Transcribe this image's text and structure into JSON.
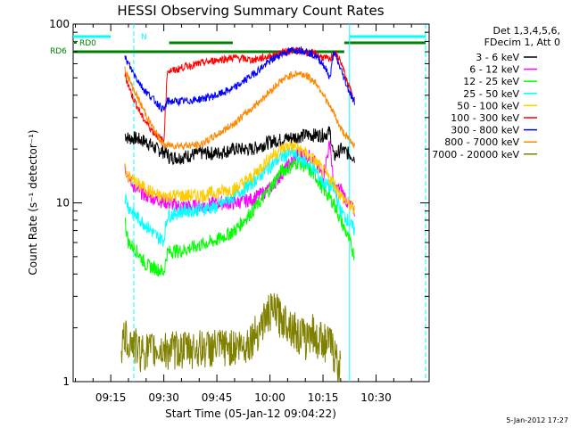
{
  "chart_data": {
    "type": "line",
    "title": "HESSI Observing Summary Count Rates",
    "xlabel": "Start Time (05-Jan-12 09:04:22)",
    "ylabel": "Count Rate (s⁻¹ detector⁻¹)",
    "yscale": "log",
    "ylim": [
      1,
      100
    ],
    "y_ticks": [
      {
        "value": 1,
        "label": "1"
      },
      {
        "value": 10,
        "label": "10"
      },
      {
        "value": 100,
        "label": "100"
      }
    ],
    "x_ticks": [
      "09:15",
      "09:30",
      "09:45",
      "10:00",
      "10:15",
      "10:30"
    ],
    "x_tick_minutes": [
      15,
      30,
      45,
      60,
      75,
      90
    ],
    "xlim_minutes": [
      4.37,
      105.0
    ],
    "grid": false,
    "legend_header": [
      "Det 1,3,4,5,6,",
      "FDecim 1, Att 0"
    ],
    "legend_position": "right",
    "series": [
      {
        "name": "3 - 6 keV",
        "color": "#000000",
        "t": [
          19,
          20,
          22,
          25,
          28,
          31,
          31.5,
          35,
          40,
          45,
          50,
          55,
          60,
          65,
          70,
          75,
          77,
          78,
          80,
          82,
          84
        ],
        "values": [
          24,
          23,
          23,
          22,
          20,
          19,
          18,
          18,
          19,
          19,
          20,
          20,
          22,
          23,
          24,
          24,
          25,
          18,
          20,
          19,
          18
        ]
      },
      {
        "name": "6 - 12 keV",
        "color": "#ff00ff",
        "t": [
          19,
          20,
          22,
          25,
          28,
          31,
          35,
          40,
          45,
          50,
          55,
          60,
          65,
          68,
          72,
          75,
          77,
          78,
          80,
          82,
          84
        ],
        "values": [
          16,
          14,
          12,
          11,
          10.5,
          10,
          9.6,
          9.6,
          10,
          10,
          10.5,
          12,
          16,
          19,
          18,
          14,
          22,
          12,
          12,
          10,
          9
        ]
      },
      {
        "name": "12 - 25 keV",
        "color": "#00ff00",
        "t": [
          19,
          20,
          22,
          25,
          28,
          30,
          31,
          33,
          35,
          40,
          45,
          50,
          55,
          60,
          63,
          66,
          68,
          70,
          73,
          75,
          78,
          80,
          82,
          84
        ],
        "values": [
          8,
          6,
          5.5,
          4.5,
          4.3,
          4.1,
          5.3,
          5.4,
          5.4,
          5.8,
          6.2,
          7,
          9,
          12,
          15,
          16,
          17,
          16,
          14,
          12,
          10,
          8,
          6.5,
          5
        ]
      },
      {
        "name": "25 - 50 keV",
        "color": "#00ffff",
        "t": [
          19,
          20,
          22,
          25,
          28,
          30,
          31,
          33,
          35,
          40,
          45,
          50,
          55,
          60,
          63,
          66,
          68,
          70,
          73,
          75,
          78,
          80,
          82,
          84
        ],
        "values": [
          11,
          9.5,
          8.5,
          7.5,
          6.5,
          6.2,
          8.5,
          8.7,
          9,
          9.2,
          9.5,
          11,
          13,
          16,
          18,
          19,
          18,
          17,
          15,
          13,
          12,
          9,
          8,
          7
        ]
      },
      {
        "name": "50 - 100 keV",
        "color": "#ffcc00",
        "t": [
          19,
          20,
          22,
          25,
          28,
          30,
          31,
          33,
          35,
          40,
          45,
          50,
          55,
          60,
          63,
          66,
          68,
          70,
          73,
          75,
          78,
          80,
          82,
          84
        ],
        "values": [
          16,
          14,
          13,
          12,
          11,
          10.8,
          11,
          11,
          11,
          11,
          11.5,
          12,
          14,
          18,
          20,
          21,
          20,
          19,
          17,
          15,
          13,
          11,
          10,
          9
        ]
      },
      {
        "name": "100 - 300 keV",
        "color": "#ff0000",
        "t": [
          19,
          21,
          24,
          27,
          30,
          31,
          33,
          36,
          40,
          45,
          50,
          55,
          60,
          63,
          66,
          68,
          70,
          73,
          75,
          77,
          78,
          80,
          82,
          84
        ],
        "values": [
          52,
          40,
          30,
          25,
          22,
          55,
          55,
          58,
          60,
          63,
          65,
          63,
          66,
          69,
          71,
          71,
          70,
          68,
          65,
          63,
          70,
          62,
          46,
          38
        ]
      },
      {
        "name": "300 - 800 keV",
        "color": "#0000ff",
        "t": [
          19,
          21,
          24,
          27,
          30,
          31,
          33,
          36,
          40,
          45,
          50,
          55,
          60,
          63,
          66,
          68,
          70,
          73,
          75,
          77,
          78,
          80,
          82,
          84
        ],
        "values": [
          65,
          55,
          44,
          38,
          33,
          37,
          37,
          37,
          38,
          40,
          44,
          52,
          62,
          68,
          71,
          72,
          71,
          66,
          60,
          50,
          70,
          56,
          44,
          36
        ]
      },
      {
        "name": "800 - 7000 keV",
        "color": "#ff8800",
        "t": [
          19,
          21,
          24,
          27,
          30,
          31,
          33,
          36,
          40,
          45,
          50,
          55,
          60,
          63,
          66,
          68,
          70,
          73,
          75,
          77,
          78,
          80,
          82,
          84
        ],
        "values": [
          56,
          45,
          34,
          26,
          21,
          21,
          21,
          21,
          21,
          24,
          28,
          34,
          42,
          48,
          52,
          53,
          52,
          47,
          41,
          34,
          32,
          26,
          23,
          21
        ]
      },
      {
        "name": "7000 - 20000 keV",
        "color": "#808000",
        "t": [
          18,
          19,
          20,
          21,
          22,
          23,
          53,
          55,
          57,
          58,
          60,
          62,
          63,
          65,
          67,
          68,
          69,
          70,
          71,
          72,
          73,
          75,
          76,
          77,
          78,
          79,
          80
        ],
        "values": [
          1.6,
          1.8,
          1.7,
          1.7,
          1.6,
          1.5,
          1.6,
          1.8,
          2.0,
          2.2,
          2.5,
          2.5,
          2.3,
          2.2,
          2.0,
          1.8,
          1.9,
          1.7,
          1.9,
          2.0,
          1.7,
          1.8,
          1.6,
          1.7,
          1.5,
          1.3,
          1.2
        ]
      }
    ],
    "annotations": {
      "labels": [
        "N",
        "RD0",
        "RD6"
      ],
      "footer_date": "5-Jan-2012 17:27"
    }
  }
}
